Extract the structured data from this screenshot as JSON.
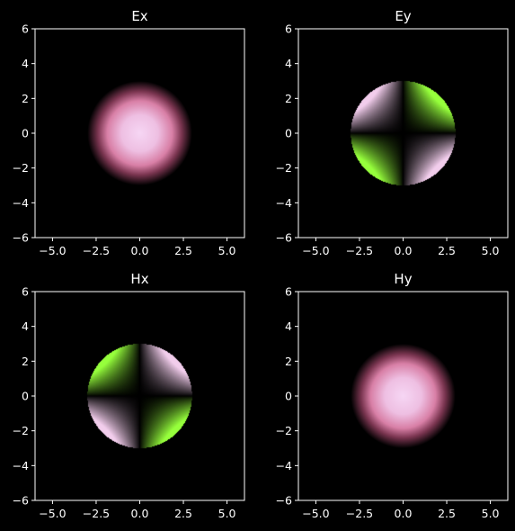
{
  "figure": {
    "background": "#000000",
    "axes_color": "#ffffff"
  },
  "chart_data": [
    {
      "type": "heatmap",
      "title": "Ex",
      "field": "gaussian-spot",
      "colormap": "PiYG-style (pink = positive, green = negative, black = zero)",
      "xlim": [
        -6,
        6
      ],
      "ylim": [
        -6,
        6
      ],
      "xticks": [
        "−5.0",
        "−2.5",
        "0.0",
        "2.5",
        "5.0"
      ],
      "xtick_values": [
        -5,
        -2.5,
        0,
        2.5,
        5
      ],
      "yticks": [
        "−6",
        "−4",
        "−2",
        "0",
        "2",
        "4",
        "6"
      ],
      "ytick_values": [
        -6,
        -4,
        -2,
        0,
        2,
        4,
        6
      ],
      "spot_radius": 3,
      "grid": false
    },
    {
      "type": "heatmap",
      "title": "Ey",
      "field": "quadrupole-xy",
      "colormap": "PiYG-style (pink = positive, green = negative, black = zero)",
      "xlim": [
        -6,
        6
      ],
      "ylim": [
        -6,
        6
      ],
      "xticks": [
        "−5.0",
        "−2.5",
        "0.0",
        "2.5",
        "5.0"
      ],
      "xtick_values": [
        -5,
        -2.5,
        0,
        2.5,
        5
      ],
      "yticks": [
        "−6",
        "−4",
        "−2",
        "0",
        "2",
        "4",
        "6"
      ],
      "ytick_values": [
        -6,
        -4,
        -2,
        0,
        2,
        4,
        6
      ],
      "aperture_radius": 3,
      "sign": -1,
      "grid": false
    },
    {
      "type": "heatmap",
      "title": "Hx",
      "field": "quadrupole-xy",
      "colormap": "PiYG-style (pink = positive, green = negative, black = zero)",
      "xlim": [
        -6,
        6
      ],
      "ylim": [
        -6,
        6
      ],
      "xticks": [
        "−5.0",
        "−2.5",
        "0.0",
        "2.5",
        "5.0"
      ],
      "xtick_values": [
        -5,
        -2.5,
        0,
        2.5,
        5
      ],
      "yticks": [
        "−6",
        "−4",
        "−2",
        "0",
        "2",
        "4",
        "6"
      ],
      "ytick_values": [
        -6,
        -4,
        -2,
        0,
        2,
        4,
        6
      ],
      "aperture_radius": 3,
      "sign": 1,
      "grid": false
    },
    {
      "type": "heatmap",
      "title": "Hy",
      "field": "gaussian-spot",
      "colormap": "PiYG-style (pink = positive, green = negative, black = zero)",
      "xlim": [
        -6,
        6
      ],
      "ylim": [
        -6,
        6
      ],
      "xticks": [
        "−5.0",
        "−2.5",
        "0.0",
        "2.5",
        "5.0"
      ],
      "xtick_values": [
        -5,
        -2.5,
        0,
        2.5,
        5
      ],
      "yticks": [
        "−6",
        "−4",
        "−2",
        "0",
        "2",
        "4",
        "6"
      ],
      "ytick_values": [
        -6,
        -4,
        -2,
        0,
        2,
        4,
        6
      ],
      "spot_radius": 3,
      "grid": false
    }
  ]
}
